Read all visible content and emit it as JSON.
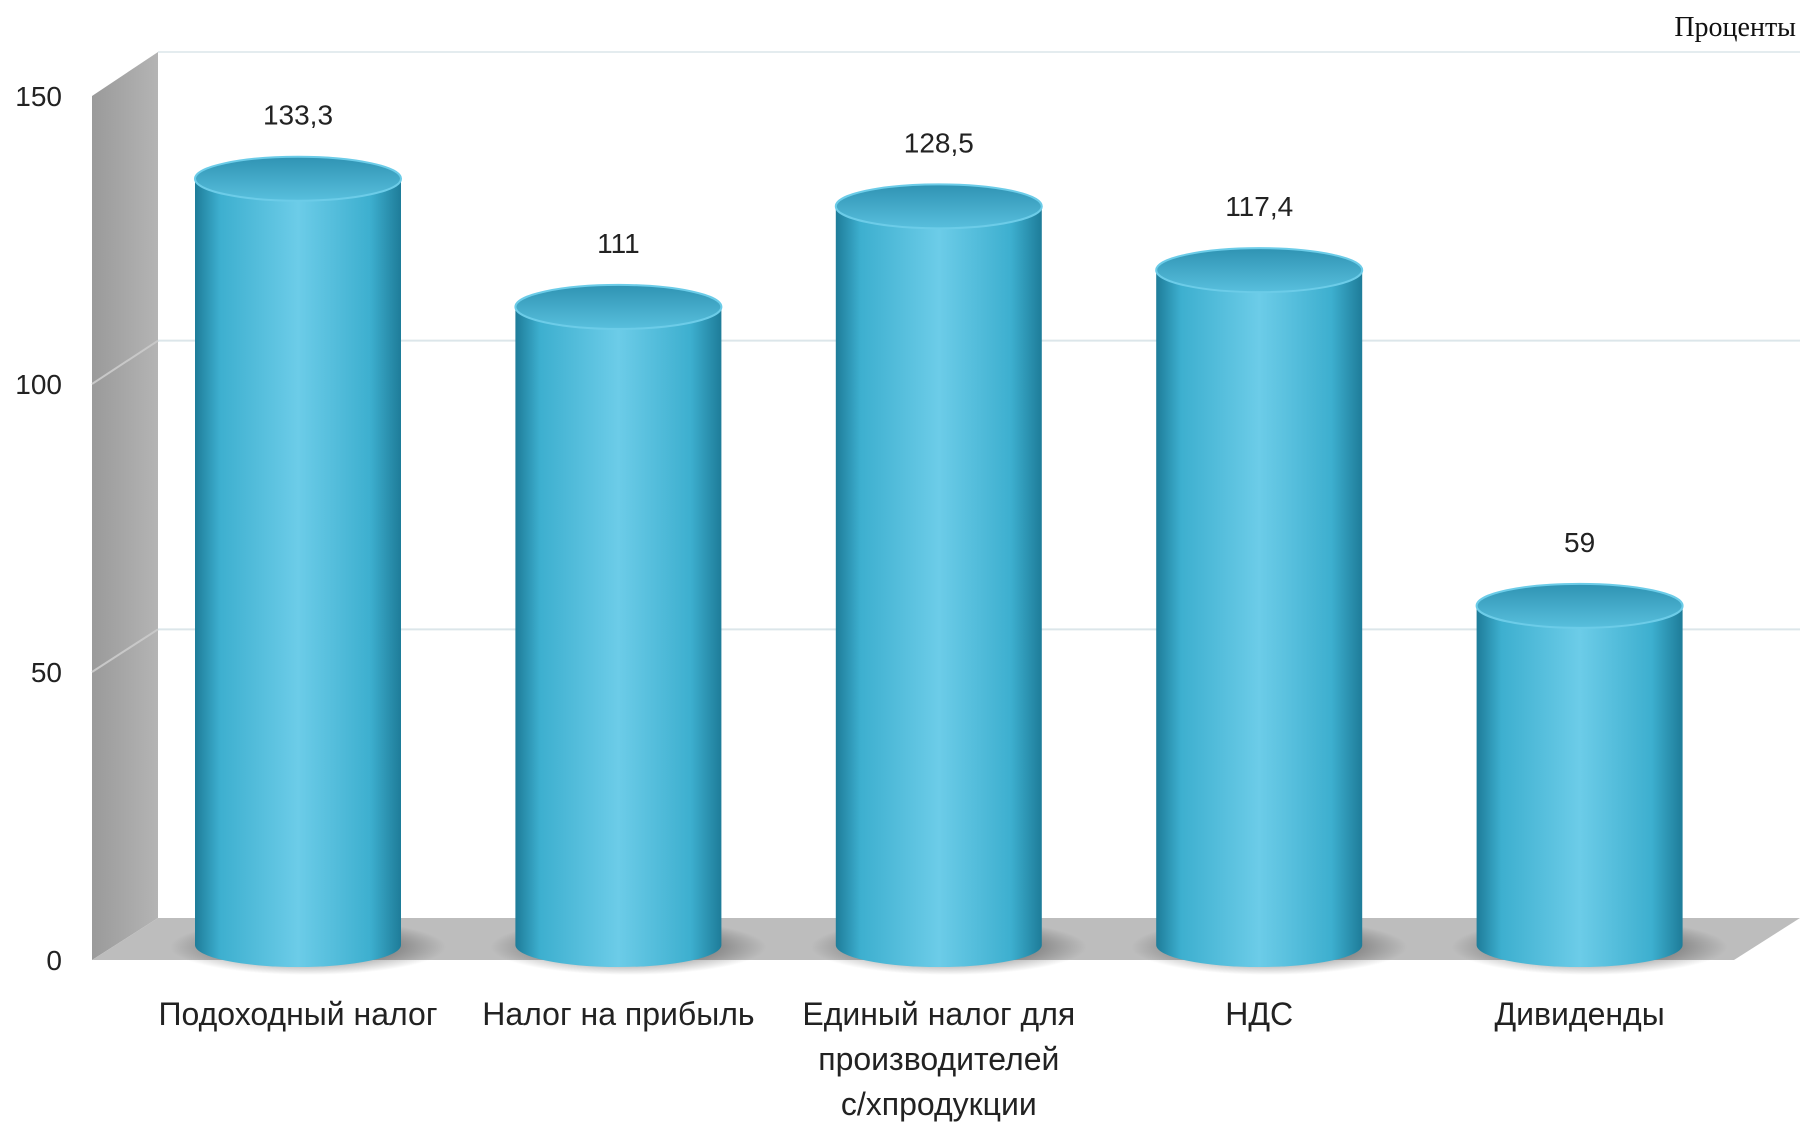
{
  "chart_data": {
    "type": "bar",
    "style": "3d-cylinder",
    "unit_label": "Проценты",
    "categories": [
      [
        "Подоходный налог"
      ],
      [
        "Налог на прибыль"
      ],
      [
        "Единый налог для",
        "производителей",
        "с/хпродукции"
      ],
      [
        "НДС"
      ],
      [
        "Дивиденды"
      ]
    ],
    "values": [
      133.3,
      111,
      128.5,
      117.4,
      59
    ],
    "value_labels": [
      "133,3",
      "111",
      "128,5",
      "117,4",
      "59"
    ],
    "y_ticks": [
      0,
      50,
      100,
      150
    ],
    "ylim": [
      0,
      150
    ],
    "grid": true,
    "legend": "none",
    "colors": {
      "bar_light": "#6CCCE8",
      "bar_mid": "#3DAFCF",
      "bar_dark": "#1E7C99",
      "top_light": "#58BFDD",
      "top_dark": "#2F93B3",
      "wall": "#A9A9A9",
      "floor": "#BDBDBD",
      "grid": "#DCE6EA"
    }
  }
}
